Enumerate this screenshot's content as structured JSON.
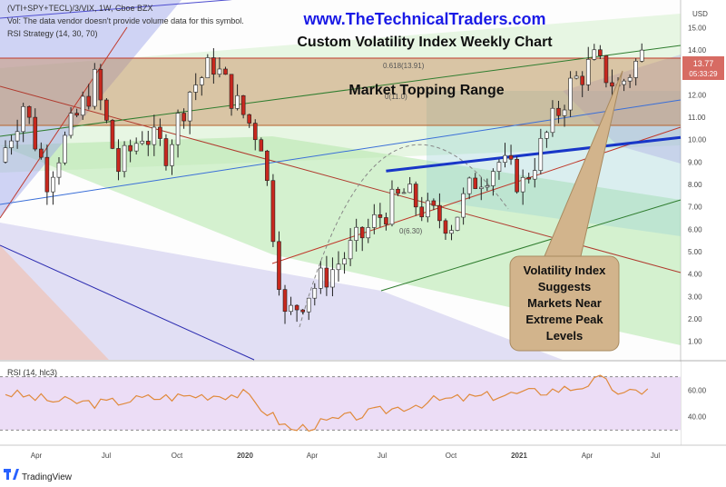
{
  "header": {
    "symbol_line": "(VTI+SPY+TECL)/3/VIX, 1W, Cboe BZX",
    "vol_line": "Vol: The data vendor doesn't provide volume data for this symbol.",
    "strategy_line": "RSI Strategy (14, 30, 70)",
    "website": "www.TheTechnicalTraders.com",
    "chart_title": "Custom Volatility Index Weekly Chart"
  },
  "annotations": {
    "topping_range": "Market Topping Range",
    "callout_lines": [
      "Volatility Index",
      "Suggests",
      "Markets Near",
      "Extreme Peak",
      "Levels"
    ],
    "fib_upper": "0.618(13.91)",
    "fib_mid": "0(11.0)",
    "fib_lower": "0(6.30)"
  },
  "price_axis": {
    "currency": "USD",
    "ticks": [
      "15.00",
      "14.00",
      "13.00",
      "12.00",
      "11.00",
      "10.00",
      "9.00",
      "8.00",
      "7.00",
      "6.00",
      "5.00",
      "4.00",
      "3.00",
      "2.00",
      "1.00"
    ],
    "last_price": "13.77",
    "countdown": "05:33:29"
  },
  "rsi_panel": {
    "label": "RSI (14, hlc3)",
    "ticks": [
      "60.00",
      "40.00"
    ]
  },
  "time_axis": {
    "labels": [
      "Apr",
      "Jul",
      "Oct",
      "2020",
      "Apr",
      "Jul",
      "Oct",
      "2021",
      "Apr",
      "Jul"
    ]
  },
  "footer": {
    "brand": "TradingView"
  },
  "colors": {
    "bull": "#ffffff",
    "bear": "#c8281e",
    "rsi_line": "#e08a3c",
    "trend_blue": "#1836c8",
    "title_blue": "#1a1ae6",
    "callout_fill": "#d2b48c"
  },
  "chart_data": {
    "type": "candlestick",
    "title": "Custom Volatility Index Weekly Chart",
    "x_range": [
      "2019-03",
      "2021-07"
    ],
    "ylim": [
      0.5,
      15.5
    ],
    "yticks": [
      1,
      2,
      3,
      4,
      5,
      6,
      7,
      8,
      9,
      10,
      11,
      12,
      13,
      14,
      15
    ],
    "last_value": 13.77,
    "close_approx": [
      {
        "x": "2019-03",
        "close": 9.0
      },
      {
        "x": "2019-04",
        "close": 11.6
      },
      {
        "x": "2019-05",
        "close": 8.3
      },
      {
        "x": "2019-06",
        "close": 10.5
      },
      {
        "x": "2019-07",
        "close": 12.6
      },
      {
        "x": "2019-08",
        "close": 8.7
      },
      {
        "x": "2019-09",
        "close": 10.3
      },
      {
        "x": "2019-10",
        "close": 9.5
      },
      {
        "x": "2019-11",
        "close": 12.2
      },
      {
        "x": "2019-12",
        "close": 13.4
      },
      {
        "x": "2020-01",
        "close": 11.5
      },
      {
        "x": "2020-02",
        "close": 10.0
      },
      {
        "x": "2020-03",
        "close": 2.0
      },
      {
        "x": "2020-04",
        "close": 3.2
      },
      {
        "x": "2020-05",
        "close": 4.2
      },
      {
        "x": "2020-06",
        "close": 5.4
      },
      {
        "x": "2020-07",
        "close": 6.6
      },
      {
        "x": "2020-08",
        "close": 7.6
      },
      {
        "x": "2020-09",
        "close": 6.7
      },
      {
        "x": "2020-10",
        "close": 6.3
      },
      {
        "x": "2020-11",
        "close": 8.2
      },
      {
        "x": "2020-12",
        "close": 9.0
      },
      {
        "x": "2021-01",
        "close": 8.0
      },
      {
        "x": "2021-02",
        "close": 10.2
      },
      {
        "x": "2021-03",
        "close": 12.4
      },
      {
        "x": "2021-04",
        "close": 13.5
      },
      {
        "x": "2021-05",
        "close": 12.3
      },
      {
        "x": "2021-06",
        "close": 13.77
      }
    ],
    "trendline": {
      "from": {
        "x": "2020-07",
        "y": 8.6
      },
      "to": {
        "x": "2021-07",
        "y": 10.1
      }
    },
    "topping_range": [
      11.0,
      13.91
    ],
    "rsi": {
      "label": "RSI (14, hlc3)",
      "ticks": [
        60,
        40
      ],
      "band": [
        30,
        70
      ],
      "values_approx": [
        {
          "x": "2019-03",
          "v": 58
        },
        {
          "x": "2019-05",
          "v": 52
        },
        {
          "x": "2019-07",
          "v": 50
        },
        {
          "x": "2019-09",
          "v": 54
        },
        {
          "x": "2019-11",
          "v": 56
        },
        {
          "x": "2020-01",
          "v": 57
        },
        {
          "x": "2020-03",
          "v": 30
        },
        {
          "x": "2020-05",
          "v": 38
        },
        {
          "x": "2020-07",
          "v": 45
        },
        {
          "x": "2020-09",
          "v": 52
        },
        {
          "x": "2020-11",
          "v": 55
        },
        {
          "x": "2021-01",
          "v": 58
        },
        {
          "x": "2021-03",
          "v": 62
        },
        {
          "x": "2021-04",
          "v": 68
        },
        {
          "x": "2021-05",
          "v": 56
        },
        {
          "x": "2021-06",
          "v": 61
        }
      ]
    }
  }
}
